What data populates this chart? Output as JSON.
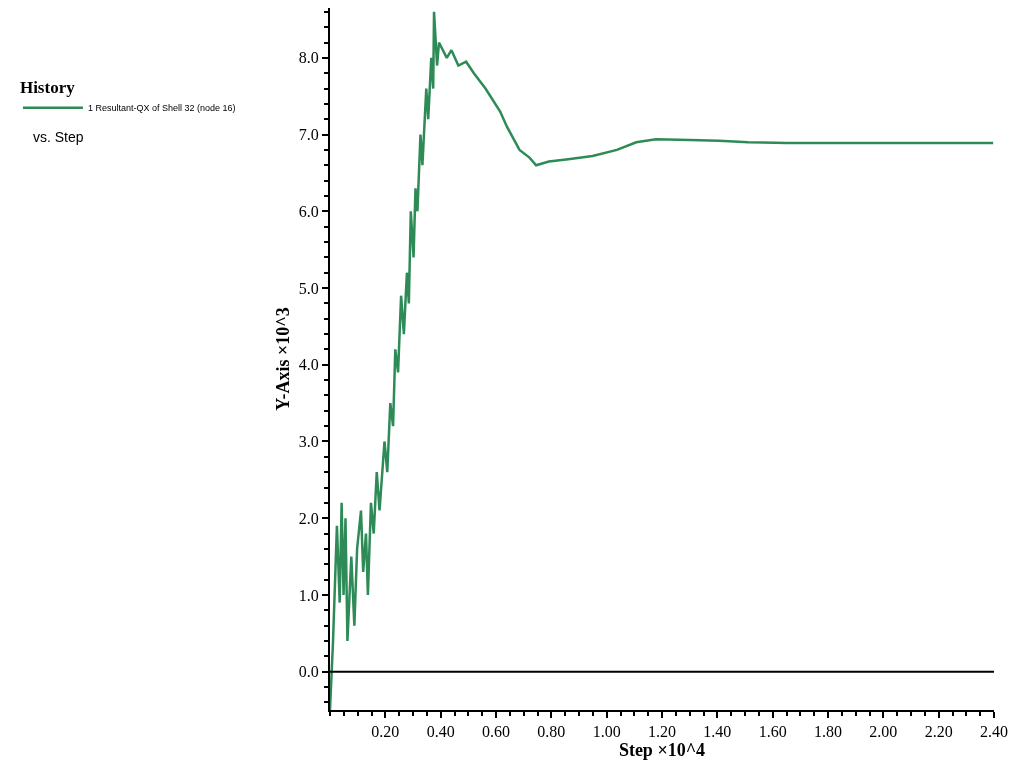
{
  "chart_data": {
    "type": "line",
    "xlabel": "Step ×10^4",
    "ylabel": "Y-Axis ×10^3",
    "legend_title": "History",
    "annotations": [
      "vs. Step"
    ],
    "x": [
      0.0,
      0.011,
      0.025,
      0.035,
      0.042,
      0.049,
      0.056,
      0.063,
      0.077,
      0.088,
      0.098,
      0.112,
      0.12,
      0.13,
      0.137,
      0.148,
      0.158,
      0.169,
      0.179,
      0.197,
      0.207,
      0.218,
      0.228,
      0.236,
      0.246,
      0.257,
      0.267,
      0.278,
      0.285,
      0.292,
      0.302,
      0.309,
      0.316,
      0.327,
      0.334,
      0.348,
      0.355,
      0.366,
      0.373,
      0.376,
      0.387,
      0.394,
      0.422,
      0.439,
      0.464,
      0.492,
      0.52,
      0.562,
      0.615,
      0.64,
      0.685,
      0.721,
      0.745,
      0.791,
      0.861,
      0.949,
      1.037,
      1.107,
      1.178,
      1.301,
      1.406,
      1.511,
      1.652,
      2.004,
      2.397
    ],
    "series": [
      {
        "name": "1 Resultant-QX of Shell 32 (node 16)",
        "color": "#2e8b57",
        "values": [
          -0.5,
          0.4,
          1.9,
          0.9,
          2.2,
          1.0,
          2.0,
          0.4,
          1.5,
          0.6,
          1.6,
          2.1,
          1.3,
          1.8,
          1.0,
          2.2,
          1.8,
          2.6,
          2.1,
          3.0,
          2.6,
          3.5,
          3.2,
          4.2,
          3.9,
          4.9,
          4.4,
          5.2,
          4.8,
          6.0,
          5.4,
          6.3,
          6.0,
          7.0,
          6.6,
          7.6,
          7.2,
          8.0,
          7.6,
          8.6,
          7.9,
          8.2,
          8.0,
          8.1,
          7.9,
          7.95,
          7.8,
          7.6,
          7.3,
          7.1,
          6.8,
          6.7,
          6.6,
          6.65,
          6.68,
          6.72,
          6.8,
          6.9,
          6.94,
          6.93,
          6.92,
          6.9,
          6.89,
          6.89,
          6.89
        ]
      }
    ],
    "xlim": [
      0,
      2.4
    ],
    "xticks": [
      {
        "value": 0.2,
        "label": "0.20"
      },
      {
        "value": 0.4,
        "label": "0.40"
      },
      {
        "value": 0.6,
        "label": "0.60"
      },
      {
        "value": 0.8,
        "label": "0.80"
      },
      {
        "value": 1.0,
        "label": "1.00"
      },
      {
        "value": 1.2,
        "label": "1.20"
      },
      {
        "value": 1.4,
        "label": "1.40"
      },
      {
        "value": 1.6,
        "label": "1.60"
      },
      {
        "value": 1.8,
        "label": "1.80"
      },
      {
        "value": 2.0,
        "label": "2.00"
      },
      {
        "value": 2.2,
        "label": "2.20"
      },
      {
        "value": 2.4,
        "label": "2.40"
      }
    ],
    "ylim": [
      -0.5,
      8.65
    ],
    "yticks": [
      {
        "value": 0,
        "label": "0.0"
      },
      {
        "value": 1,
        "label": "1.0"
      },
      {
        "value": 2,
        "label": "2.0"
      },
      {
        "value": 3,
        "label": "3.0"
      },
      {
        "value": 4,
        "label": "4.0"
      },
      {
        "value": 5,
        "label": "5.0"
      },
      {
        "value": 6,
        "label": "6.0"
      },
      {
        "value": 7,
        "label": "7.0"
      },
      {
        "value": 8,
        "label": "8.0"
      }
    ],
    "ref_lines": [
      {
        "axis": "y",
        "value": 0,
        "color": "#000000"
      }
    ],
    "legend": "left",
    "marker": "none",
    "line_style": "solid"
  }
}
